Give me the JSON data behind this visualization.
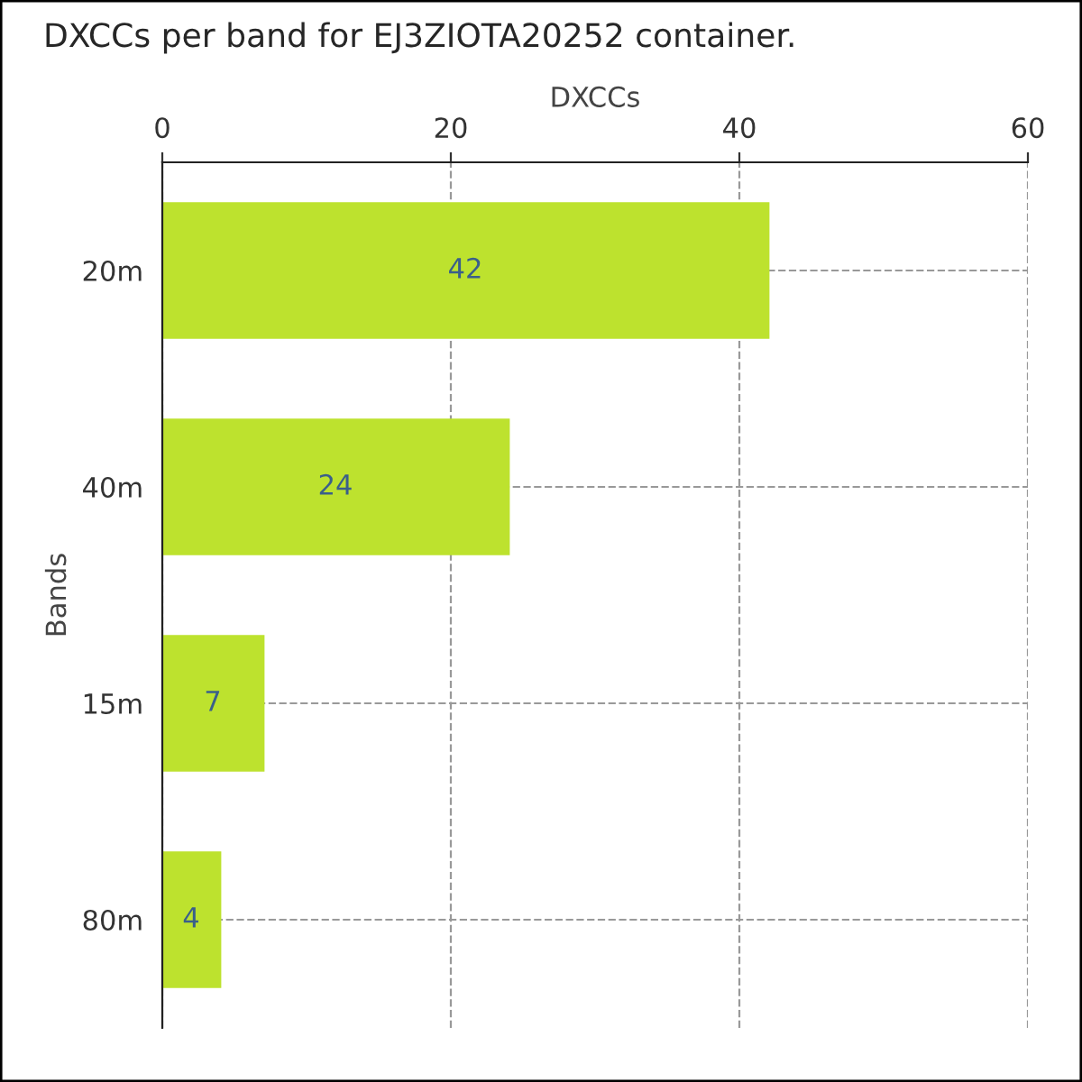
{
  "chart_data": {
    "type": "bar",
    "orientation": "horizontal",
    "title": "DXCCs per band for EJ3ZIOTA20252 container.",
    "xlabel": "DXCCs",
    "ylabel": "Bands",
    "categories": [
      "20m",
      "40m",
      "15m",
      "80m"
    ],
    "values": [
      42,
      24,
      7,
      4
    ],
    "color": "#bde22e",
    "xlim": [
      0,
      60
    ],
    "xticks": [
      0,
      20,
      40,
      60
    ],
    "grid": true,
    "data_labels": true
  }
}
